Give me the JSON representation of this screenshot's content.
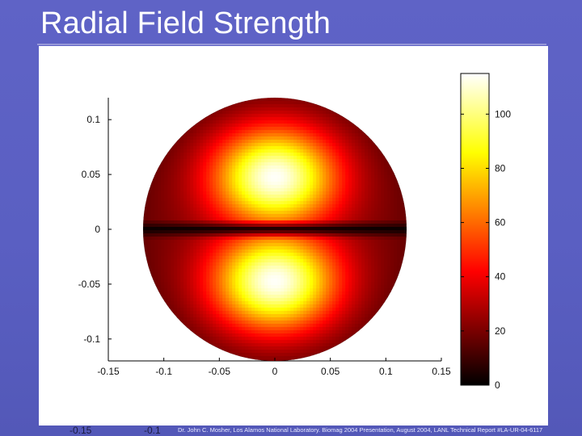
{
  "slide": {
    "title": "Radial Field Strength",
    "footer": "Dr. John C. Mosher, Los Alamos National Laboratory.  Biomag 2004 Presentation, August 2004, LANL Technical Report #LA-UR-04-6117",
    "stray_ticks": [
      "-0.15",
      "-0.1"
    ]
  },
  "chart_data": {
    "type": "heatmap",
    "title": "",
    "xlabel": "",
    "ylabel": "",
    "xlim": [
      -0.15,
      0.15
    ],
    "ylim": [
      -0.12,
      0.12
    ],
    "x_ticks": [
      "-0.15",
      "-0.1",
      "-0.05",
      "0",
      "0.05",
      "0.1",
      "0.15"
    ],
    "y_ticks": [
      "0.1",
      "0.05",
      "0",
      "-0.05",
      "-0.1"
    ],
    "x_tick_values": [
      -0.15,
      -0.1,
      -0.05,
      0,
      0.05,
      0.1,
      0.15
    ],
    "y_tick_values": [
      0.1,
      0.05,
      0,
      -0.05,
      -0.1
    ],
    "colorbar": {
      "range": [
        0,
        115
      ],
      "ticks": [
        "100",
        "80",
        "60",
        "40",
        "20",
        "0"
      ],
      "tick_values": [
        100,
        80,
        60,
        40,
        20,
        0
      ],
      "colormap": "hot"
    },
    "field": {
      "shape": "disk",
      "center": [
        0,
        0
      ],
      "radius": 0.12,
      "peaks": [
        {
          "x": 0.0,
          "y": 0.048,
          "value": 115
        },
        {
          "x": 0.0,
          "y": -0.048,
          "value": 115
        }
      ],
      "minimum_along": "y = 0",
      "minimum_value": 0,
      "edge_value": 22
    },
    "grid": false,
    "legend": "none"
  }
}
